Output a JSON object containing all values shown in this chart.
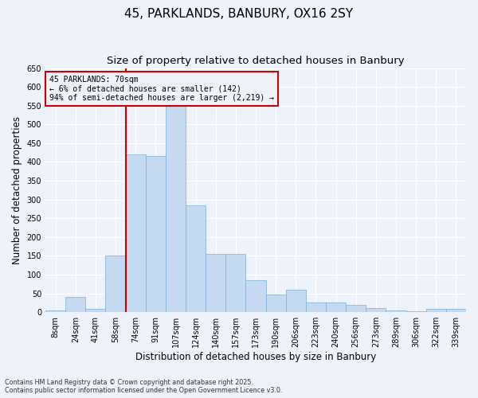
{
  "title": "45, PARKLANDS, BANBURY, OX16 2SY",
  "subtitle": "Size of property relative to detached houses in Banbury",
  "xlabel": "Distribution of detached houses by size in Banbury",
  "ylabel": "Number of detached properties",
  "categories": [
    "8sqm",
    "24sqm",
    "41sqm",
    "58sqm",
    "74sqm",
    "91sqm",
    "107sqm",
    "124sqm",
    "140sqm",
    "157sqm",
    "173sqm",
    "190sqm",
    "206sqm",
    "223sqm",
    "240sqm",
    "256sqm",
    "273sqm",
    "289sqm",
    "306sqm",
    "322sqm",
    "339sqm"
  ],
  "values": [
    5,
    40,
    8,
    150,
    420,
    415,
    570,
    285,
    155,
    155,
    85,
    48,
    60,
    25,
    25,
    20,
    10,
    5,
    3,
    8,
    8
  ],
  "bar_color": "#c5d9f0",
  "bar_edge_color": "#7aaed6",
  "vline_color": "#cc0000",
  "annotation_text": "45 PARKLANDS: 70sqm\n← 6% of detached houses are smaller (142)\n94% of semi-detached houses are larger (2,219) →",
  "annotation_box_edge": "#cc0000",
  "ylim": [
    0,
    650
  ],
  "yticks": [
    0,
    50,
    100,
    150,
    200,
    250,
    300,
    350,
    400,
    450,
    500,
    550,
    600,
    650
  ],
  "footnote1": "Contains HM Land Registry data © Crown copyright and database right 2025.",
  "footnote2": "Contains public sector information licensed under the Open Government Licence v3.0.",
  "bg_color": "#eef2fb",
  "grid_color": "#ffffff",
  "title_fontsize": 11,
  "subtitle_fontsize": 9.5,
  "tick_fontsize": 7,
  "ylabel_fontsize": 8.5,
  "xlabel_fontsize": 8.5,
  "footnote_fontsize": 5.8
}
